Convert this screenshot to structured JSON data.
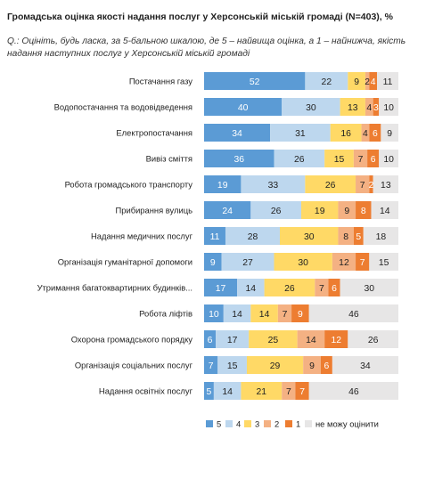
{
  "header": {
    "title": "Громадська оцінка якості надання послуг у Херсонській міській громаді (N=403), %",
    "subtitle": "Q.: Оцініть, будь ласка, за 5-бальною шкалою, де 5 – найвища оцінка, а 1 – найнижча, якість надання наступних послуг у Херсонській міській громаді"
  },
  "chart_data": {
    "type": "bar",
    "orientation": "horizontal",
    "stacked": true,
    "title": "Громадська оцінка якості надання послуг у Херсонській міській громаді (N=403), %",
    "xlabel": "",
    "ylabel": "",
    "xlim": [
      0,
      100
    ],
    "grid": false,
    "legend_position": "bottom",
    "categories": [
      "Постачання газу",
      "Водопостачання та водовідведення",
      "Електропостачання",
      "Вивіз сміття",
      "Робота громадського транспорту",
      "Прибирання вулиць",
      "Надання медичних послуг",
      "Організація гуманітарної допомоги",
      "Утримання багатоквартирних будинків...",
      "Робота ліфтів",
      "Охорона громадського порядку",
      "Організація соціальних послуг",
      "Надання освітніх послуг"
    ],
    "series": [
      {
        "name": "5",
        "color": "#5b9bd5",
        "text_color": "#ffffff",
        "values": [
          52,
          40,
          34,
          36,
          19,
          24,
          11,
          9,
          17,
          10,
          6,
          7,
          5
        ]
      },
      {
        "name": "4",
        "color": "#bdd7ee",
        "text_color": "#222222",
        "values": [
          22,
          30,
          31,
          26,
          33,
          26,
          28,
          27,
          14,
          14,
          17,
          15,
          14
        ]
      },
      {
        "name": "3",
        "color": "#ffd966",
        "text_color": "#222222",
        "values": [
          9,
          13,
          16,
          15,
          26,
          19,
          30,
          30,
          26,
          14,
          25,
          29,
          21
        ]
      },
      {
        "name": "2",
        "color": "#f4b183",
        "text_color": "#222222",
        "values": [
          2,
          4,
          4,
          7,
          7,
          9,
          8,
          12,
          7,
          7,
          14,
          9,
          7
        ]
      },
      {
        "name": "1",
        "color": "#ed7d31",
        "text_color": "#ffffff",
        "values": [
          4,
          3,
          6,
          6,
          2,
          8,
          5,
          7,
          6,
          9,
          12,
          6,
          7
        ]
      },
      {
        "name": "не можу оцінити",
        "color": "#e7e6e6",
        "text_color": "#222222",
        "values": [
          11,
          10,
          9,
          10,
          13,
          14,
          18,
          15,
          30,
          46,
          26,
          34,
          46
        ]
      }
    ]
  }
}
